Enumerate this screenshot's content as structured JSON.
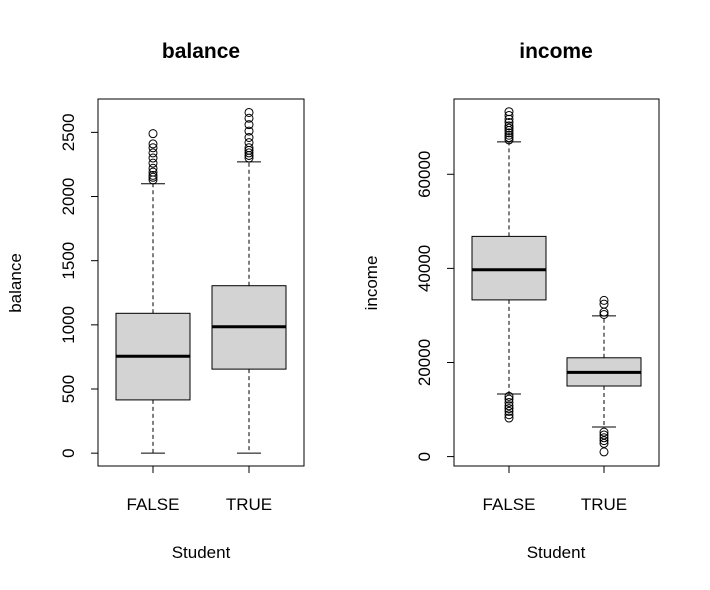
{
  "chart_data": [
    {
      "type": "boxplot",
      "title": "balance",
      "xlabel": "Student",
      "ylabel": "balance",
      "categories": [
        "FALSE",
        "TRUE"
      ],
      "ylim": [
        -100,
        2760
      ],
      "yticks": [
        0,
        500,
        1000,
        1500,
        2000,
        2500
      ],
      "boxes": [
        {
          "category": "FALSE",
          "min": 0,
          "q1": 415,
          "median": 755,
          "q3": 1090,
          "max": 2100,
          "outliers": [
            2130,
            2150,
            2165,
            2190,
            2220,
            2260,
            2300,
            2340,
            2380,
            2410,
            2490
          ]
        },
        {
          "category": "TRUE",
          "min": 0,
          "q1": 655,
          "median": 985,
          "q3": 1305,
          "max": 2270,
          "outliers": [
            2300,
            2320,
            2340,
            2360,
            2380,
            2420,
            2460,
            2510,
            2560,
            2610,
            2655
          ]
        }
      ]
    },
    {
      "type": "boxplot",
      "title": "income",
      "xlabel": "Student",
      "ylabel": "income",
      "categories": [
        "FALSE",
        "TRUE"
      ],
      "ylim": [
        -2000,
        76000
      ],
      "yticks": [
        0,
        20000,
        40000,
        60000
      ],
      "boxes": [
        {
          "category": "FALSE",
          "min": 13300,
          "q1": 33300,
          "median": 39700,
          "q3": 46800,
          "max": 66900,
          "outliers": [
            67300,
            67800,
            68300,
            68800,
            69300,
            69800,
            70300,
            71000,
            71700,
            72500,
            73300,
            12800,
            12200,
            11500,
            10800,
            10200,
            9600,
            8900,
            8200
          ]
        },
        {
          "category": "TRUE",
          "min": 6300,
          "q1": 15000,
          "median": 17900,
          "q3": 21000,
          "max": 29900,
          "outliers": [
            30200,
            30700,
            32400,
            33200,
            5200,
            4600,
            4000,
            3400,
            2800,
            1000
          ]
        }
      ]
    }
  ]
}
